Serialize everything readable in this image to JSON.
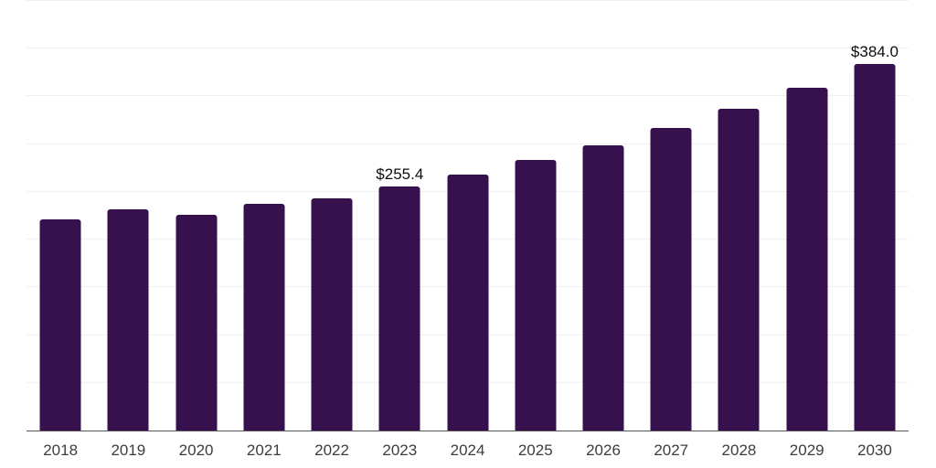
{
  "chart_data": {
    "type": "bar",
    "title": "",
    "xlabel": "",
    "ylabel": "",
    "categories": [
      "2018",
      "2019",
      "2020",
      "2021",
      "2022",
      "2023",
      "2024",
      "2025",
      "2026",
      "2027",
      "2028",
      "2029",
      "2030"
    ],
    "values": [
      221.5,
      231.4,
      226.0,
      237.7,
      243.4,
      255.4,
      268.5,
      283.4,
      298.7,
      316.9,
      337.1,
      358.6,
      384.0
    ],
    "data_labels": [
      {
        "category": "2023",
        "label": "$255.4"
      },
      {
        "category": "2030",
        "label": "$384.0"
      }
    ],
    "ylim": [
      0,
      450
    ],
    "gridline_step": 50,
    "grid": "horizontal",
    "legend_position": "none",
    "y_axis_ticks_visible": false,
    "colors": {
      "bar": "#36114E",
      "gridline": "#F0F0F0",
      "axis_line": "#555555",
      "tick_label": "#3D3D3D",
      "data_label": "#0D0D0D",
      "background": "#FFFFFF"
    }
  }
}
